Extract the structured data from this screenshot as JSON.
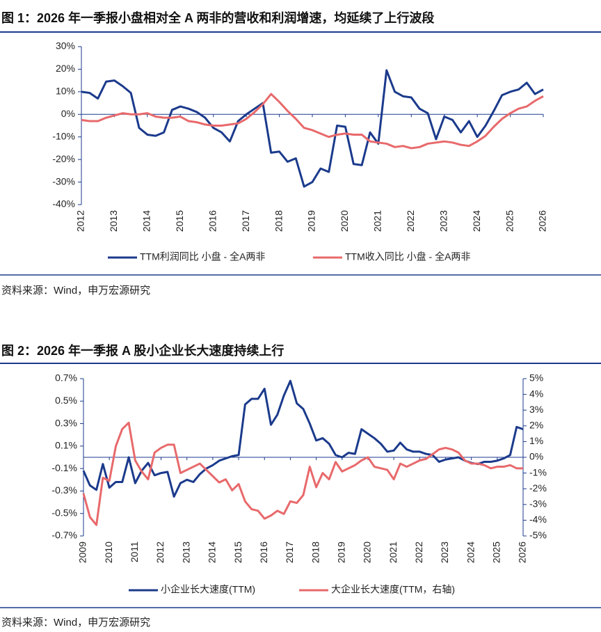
{
  "chart_data": [
    {
      "type": "line",
      "title": "图 1：2026 年一季报小盘相对全 A 两非的营收和利润增速，均延续了上行波段",
      "source": "资料来源：Wind，申万宏源研究",
      "x": [
        2012,
        2012.25,
        2012.5,
        2012.75,
        2013,
        2013.25,
        2013.5,
        2013.75,
        2014,
        2014.25,
        2014.5,
        2014.75,
        2015,
        2015.25,
        2015.5,
        2015.75,
        2016,
        2016.25,
        2016.5,
        2016.75,
        2017,
        2017.25,
        2017.5,
        2017.75,
        2018,
        2018.25,
        2018.5,
        2018.75,
        2019,
        2019.25,
        2019.5,
        2019.75,
        2020,
        2020.25,
        2020.5,
        2020.75,
        2021,
        2021.25,
        2021.5,
        2021.75,
        2022,
        2022.25,
        2022.5,
        2022.75,
        2023,
        2023.25,
        2023.5,
        2023.75,
        2024,
        2024.25,
        2024.5,
        2024.75,
        2025,
        2025.25,
        2025.5,
        2025.75,
        2026
      ],
      "xlim": [
        2012,
        2026
      ],
      "xticks": [
        2012,
        2013,
        2014,
        2015,
        2016,
        2017,
        2018,
        2019,
        2020,
        2021,
        2022,
        2023,
        2024,
        2025,
        2026
      ],
      "ylim": [
        -40,
        30
      ],
      "yticks": [
        {
          "value": -40,
          "label": "-40%"
        },
        {
          "value": -30,
          "label": "-30%"
        },
        {
          "value": -20,
          "label": "-20%"
        },
        {
          "value": -10,
          "label": "-10%"
        },
        {
          "value": 0,
          "label": "0%"
        },
        {
          "value": 10,
          "label": "10%"
        },
        {
          "value": 20,
          "label": "20%"
        },
        {
          "value": 30,
          "label": "30%"
        }
      ],
      "grid": false,
      "series": [
        {
          "name": "TTM利润同比 小盘 - 全A两非",
          "color": "#1b3a8c",
          "values": [
            10,
            9.5,
            7,
            14.5,
            15,
            12.5,
            9.5,
            -6,
            -9,
            -9.5,
            -8,
            2,
            3.5,
            2.5,
            1,
            -1.5,
            -6,
            -8,
            -12,
            -3,
            0,
            2.5,
            5,
            -17,
            -16.5,
            -21,
            -19.5,
            -32,
            -30,
            -24,
            -25.5,
            -5,
            -5.5,
            -22,
            -22.5,
            -8,
            -13,
            19.5,
            10,
            8,
            7.5,
            2.5,
            0.5,
            -11,
            -1,
            -2.5,
            -8,
            -3,
            -10,
            -5,
            1.5,
            8.5,
            10,
            11,
            14,
            9,
            11
          ]
        },
        {
          "name": "TTM收入同比 小盘 - 全A两非",
          "color": "#e8696b",
          "values": [
            -2.5,
            -3,
            -3,
            -1.5,
            -0.5,
            0.5,
            0,
            0,
            0.5,
            -1,
            -1.5,
            -1.5,
            -1,
            -3,
            -3.5,
            -4.5,
            -5,
            -5,
            -4.5,
            -4,
            -2,
            1,
            4.5,
            9,
            5.5,
            1.5,
            -2,
            -6,
            -7,
            -8.5,
            -10,
            -9,
            -8.5,
            -9,
            -9,
            -12,
            -12.5,
            -13,
            -14.5,
            -14,
            -15,
            -14.5,
            -13,
            -12.5,
            -12,
            -12.5,
            -13.5,
            -14,
            -12,
            -9.5,
            -5.5,
            -2,
            0.5,
            2.5,
            3.5,
            6,
            8
          ]
        }
      ]
    },
    {
      "type": "line",
      "title": "图 2：2026 年一季报 A 股小企业长大速度持续上行",
      "source": "资料来源：Wind，申万宏源研究",
      "x": [
        2009,
        2009.25,
        2009.5,
        2009.75,
        2010,
        2010.25,
        2010.5,
        2010.75,
        2011,
        2011.25,
        2011.5,
        2011.75,
        2012,
        2012.25,
        2012.5,
        2012.75,
        2013,
        2013.25,
        2013.5,
        2013.75,
        2014,
        2014.25,
        2014.5,
        2014.75,
        2015,
        2015.25,
        2015.5,
        2015.75,
        2016,
        2016.25,
        2016.5,
        2016.75,
        2017,
        2017.25,
        2017.5,
        2017.75,
        2018,
        2018.25,
        2018.5,
        2018.75,
        2019,
        2019.25,
        2019.5,
        2019.75,
        2020,
        2020.25,
        2020.5,
        2020.75,
        2021,
        2021.25,
        2021.5,
        2021.75,
        2022,
        2022.25,
        2022.5,
        2022.75,
        2023,
        2023.25,
        2023.5,
        2023.75,
        2024,
        2024.25,
        2024.5,
        2024.75,
        2025,
        2025.25,
        2025.5,
        2025.75,
        2026
      ],
      "xlim": [
        2009,
        2026
      ],
      "xticks": [
        2009,
        2010,
        2011,
        2012,
        2013,
        2014,
        2015,
        2016,
        2017,
        2018,
        2019,
        2020,
        2021,
        2022,
        2023,
        2024,
        2025,
        2026
      ],
      "ylim": [
        -0.7,
        0.7
      ],
      "yticks": [
        {
          "value": -0.7,
          "label": "-0.7%"
        },
        {
          "value": -0.5,
          "label": "-0.5%"
        },
        {
          "value": -0.3,
          "label": "-0.3%"
        },
        {
          "value": -0.1,
          "label": "-0.1%"
        },
        {
          "value": 0.1,
          "label": "0.1%"
        },
        {
          "value": 0.3,
          "label": "0.3%"
        },
        {
          "value": 0.5,
          "label": "0.5%"
        },
        {
          "value": 0.7,
          "label": "0.7%"
        }
      ],
      "y2lim": [
        -5,
        5
      ],
      "y2ticks": [
        {
          "value": -5,
          "label": "-5%"
        },
        {
          "value": -4,
          "label": "-4%"
        },
        {
          "value": -3,
          "label": "-3%"
        },
        {
          "value": -2,
          "label": "-2%"
        },
        {
          "value": -1,
          "label": "-1%"
        },
        {
          "value": 0,
          "label": "0%"
        },
        {
          "value": 1,
          "label": "1%"
        },
        {
          "value": 2,
          "label": "2%"
        },
        {
          "value": 3,
          "label": "3%"
        },
        {
          "value": 4,
          "label": "4%"
        },
        {
          "value": 5,
          "label": "5%"
        }
      ],
      "grid": false,
      "series": [
        {
          "name": "小企业长大速度(TTM)",
          "color": "#1b3a8c",
          "values": [
            -0.12,
            -0.25,
            -0.29,
            -0.06,
            -0.27,
            -0.22,
            -0.22,
            0,
            -0.23,
            -0.12,
            -0.05,
            -0.16,
            -0.14,
            -0.13,
            -0.35,
            -0.23,
            -0.2,
            -0.22,
            -0.15,
            -0.1,
            -0.07,
            -0.03,
            -0.01,
            0.01,
            0.02,
            0.47,
            0.52,
            0.52,
            0.61,
            0.29,
            0.38,
            0.55,
            0.68,
            0.48,
            0.43,
            0.3,
            0.15,
            0.17,
            0.12,
            0.02,
            0,
            0.04,
            0.03,
            0.25,
            0.21,
            0.17,
            0.12,
            0.05,
            0.06,
            0.13,
            0.07,
            0.05,
            0.05,
            0.03,
            0.02,
            -0.04,
            -0.02,
            -0.01,
            0,
            -0.03,
            -0.05,
            -0.06,
            -0.04,
            -0.04,
            -0.03,
            -0.01,
            0.02,
            0.27,
            0.25
          ]
        },
        {
          "name": "大企业长大速度(TTM，右轴)",
          "color": "#e8696b",
          "axis": "y2",
          "values": [
            -2.3,
            -3.8,
            -4.3,
            -1.3,
            -1.5,
            0.7,
            1.8,
            2.2,
            -0.2,
            -0.9,
            -1.4,
            0.3,
            0.6,
            0.8,
            0.8,
            -1,
            -0.8,
            -0.6,
            -0.4,
            -0.8,
            -1.2,
            -1.6,
            -1.4,
            -2.1,
            -1.7,
            -2.8,
            -3.3,
            -3.4,
            -3.9,
            -3.7,
            -3.4,
            -3.6,
            -2.8,
            -2.9,
            -2.4,
            -0.6,
            -1.9,
            -1,
            -1.4,
            -0.3,
            -0.9,
            -0.7,
            -0.5,
            -0.2,
            0,
            -0.6,
            -0.7,
            -0.8,
            -1.4,
            -0.4,
            -0.6,
            -0.4,
            -0.2,
            -0.1,
            0.2,
            0.5,
            0.6,
            0.5,
            0.3,
            -0.2,
            -0.4,
            -0.4,
            -0.5,
            -0.7,
            -0.6,
            -0.6,
            -0.5,
            -0.7,
            -0.7
          ]
        }
      ]
    }
  ]
}
